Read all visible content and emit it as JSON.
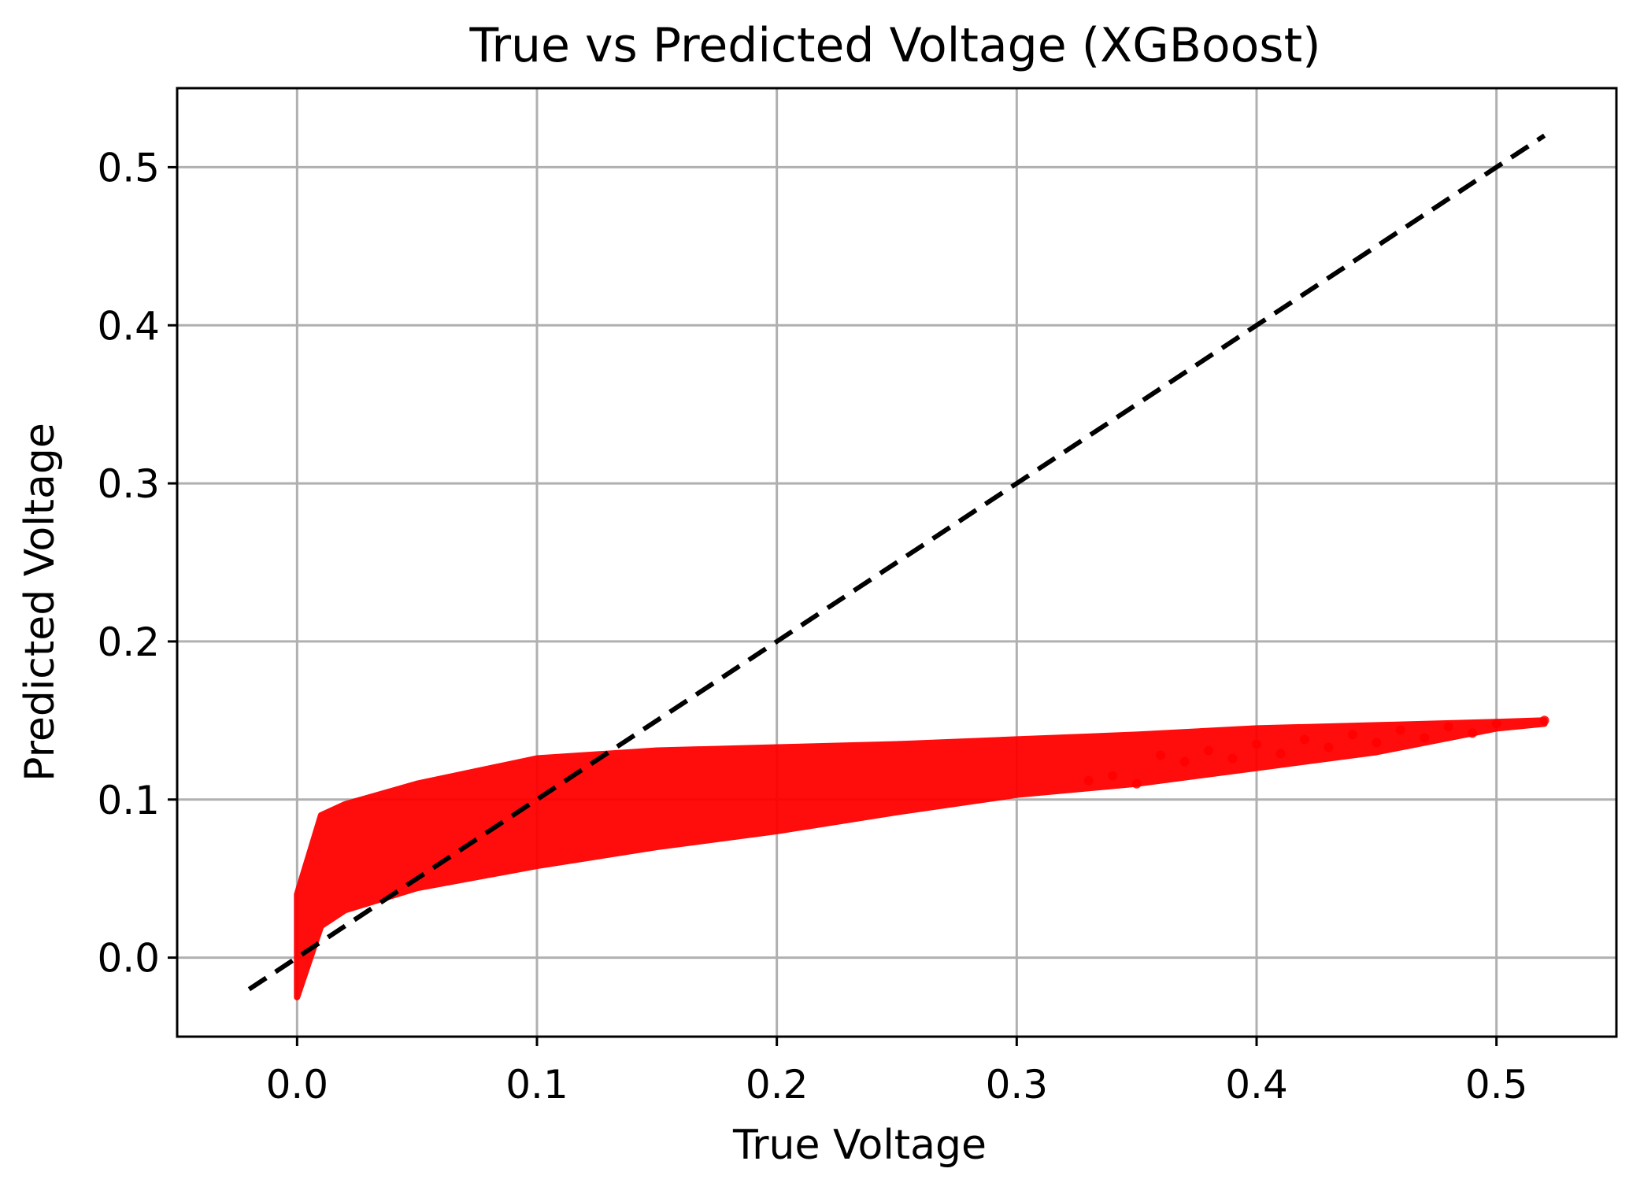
{
  "chart_data": {
    "type": "scatter",
    "title": "True vs Predicted Voltage (XGBoost)",
    "xlabel": "True Voltage",
    "ylabel": "Predicted Voltage",
    "xlim": [
      -0.05,
      0.55
    ],
    "ylim": [
      -0.05,
      0.55
    ],
    "xticks": [
      0.0,
      0.1,
      0.2,
      0.3,
      0.4,
      0.5
    ],
    "yticks": [
      0.0,
      0.1,
      0.2,
      0.3,
      0.4,
      0.5
    ],
    "xtick_labels": [
      "0.0",
      "0.1",
      "0.2",
      "0.3",
      "0.4",
      "0.5"
    ],
    "ytick_labels": [
      "0.0",
      "0.1",
      "0.2",
      "0.3",
      "0.4",
      "0.5"
    ],
    "grid": true,
    "colors": {
      "points": "#ff0000",
      "reference_line": "#000000",
      "grid": "#b0b0b0"
    },
    "series": [
      {
        "kind": "scatter",
        "color": "#ff0000",
        "band": {
          "x": [
            0.0,
            0.01,
            0.02,
            0.05,
            0.1,
            0.15,
            0.2,
            0.25,
            0.3,
            0.35,
            0.4,
            0.45,
            0.5,
            0.52
          ],
          "y_upper": [
            0.04,
            0.09,
            0.097,
            0.11,
            0.126,
            0.131,
            0.133,
            0.135,
            0.138,
            0.141,
            0.145,
            0.147,
            0.149,
            0.15
          ],
          "y_lower": [
            -0.025,
            0.02,
            0.03,
            0.044,
            0.058,
            0.07,
            0.08,
            0.092,
            0.103,
            0.11,
            0.12,
            0.13,
            0.145,
            0.148
          ]
        },
        "sparse_points": [
          [
            0.36,
            0.128
          ],
          [
            0.37,
            0.124
          ],
          [
            0.38,
            0.131
          ],
          [
            0.39,
            0.126
          ],
          [
            0.4,
            0.135
          ],
          [
            0.41,
            0.129
          ],
          [
            0.42,
            0.138
          ],
          [
            0.43,
            0.133
          ],
          [
            0.44,
            0.141
          ],
          [
            0.45,
            0.136
          ],
          [
            0.46,
            0.144
          ],
          [
            0.47,
            0.139
          ],
          [
            0.48,
            0.146
          ],
          [
            0.49,
            0.142
          ],
          [
            0.5,
            0.148
          ],
          [
            0.52,
            0.15
          ],
          [
            0.34,
            0.115
          ],
          [
            0.35,
            0.11
          ],
          [
            0.33,
            0.112
          ]
        ]
      },
      {
        "kind": "line",
        "style": "dashed",
        "color": "#000000",
        "x": [
          -0.02,
          0.52
        ],
        "y": [
          -0.02,
          0.52
        ]
      }
    ]
  }
}
